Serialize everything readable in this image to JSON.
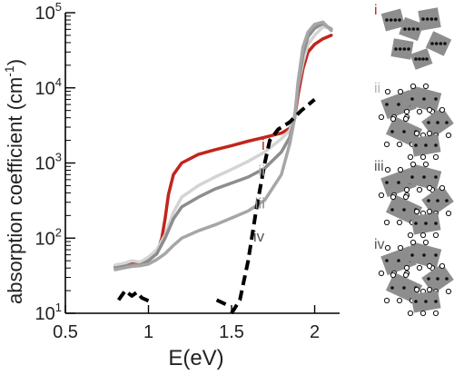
{
  "chart_data": {
    "type": "line",
    "xlabel": "E(eV)",
    "ylabel": "absorption coefficient (cm",
    "ylabel_sup": "-1",
    "ylabel_close": ")",
    "xlim": [
      0.5,
      2.15
    ],
    "ylim": [
      10,
      100000
    ],
    "yscale": "log",
    "grid": false,
    "x_ticks": [
      {
        "value": 0.5,
        "label": "0.5"
      },
      {
        "value": 1.0,
        "label": "1"
      },
      {
        "value": 1.5,
        "label": "1.5"
      },
      {
        "value": 2.0,
        "label": "2"
      }
    ],
    "y_ticks": [
      {
        "value": 10,
        "base": "10",
        "exp": "1"
      },
      {
        "value": 100,
        "base": "10",
        "exp": "2"
      },
      {
        "value": 1000,
        "base": "10",
        "exp": "3"
      },
      {
        "value": 10000,
        "base": "10",
        "exp": "4"
      },
      {
        "value": 100000,
        "base": "10",
        "exp": "5"
      }
    ],
    "series": [
      {
        "name": "i",
        "color": "#c0261c",
        "dash": false,
        "label_at": [
          1.68,
          1500
        ],
        "points": [
          [
            0.8,
            42
          ],
          [
            0.85,
            43
          ],
          [
            0.9,
            46
          ],
          [
            0.95,
            45
          ],
          [
            1.0,
            52
          ],
          [
            1.05,
            62
          ],
          [
            1.08,
            100
          ],
          [
            1.1,
            180
          ],
          [
            1.12,
            380
          ],
          [
            1.15,
            700
          ],
          [
            1.2,
            1000
          ],
          [
            1.3,
            1300
          ],
          [
            1.4,
            1500
          ],
          [
            1.5,
            1700
          ],
          [
            1.6,
            1950
          ],
          [
            1.7,
            2200
          ],
          [
            1.8,
            2500
          ],
          [
            1.85,
            2900
          ],
          [
            1.88,
            4000
          ],
          [
            1.9,
            8000
          ],
          [
            1.93,
            18000
          ],
          [
            1.96,
            30000
          ],
          [
            2.0,
            38000
          ],
          [
            2.05,
            45000
          ],
          [
            2.1,
            50000
          ]
        ]
      },
      {
        "name": "ii",
        "color": "#d4d4d4",
        "dash": false,
        "label_at": [
          1.66,
          680
        ],
        "points": [
          [
            0.8,
            44
          ],
          [
            0.85,
            46
          ],
          [
            0.9,
            50
          ],
          [
            0.95,
            48
          ],
          [
            1.0,
            56
          ],
          [
            1.05,
            70
          ],
          [
            1.1,
            110
          ],
          [
            1.15,
            220
          ],
          [
            1.2,
            350
          ],
          [
            1.3,
            500
          ],
          [
            1.4,
            650
          ],
          [
            1.5,
            820
          ],
          [
            1.6,
            1050
          ],
          [
            1.7,
            1400
          ],
          [
            1.8,
            2100
          ],
          [
            1.85,
            2700
          ],
          [
            1.88,
            4500
          ],
          [
            1.9,
            10000
          ],
          [
            1.93,
            22000
          ],
          [
            1.96,
            38000
          ],
          [
            2.0,
            50000
          ],
          [
            2.05,
            65000
          ],
          [
            2.1,
            62000
          ]
        ]
      },
      {
        "name": "iii",
        "color": "#8d8d8d",
        "dash": false,
        "label_at": [
          1.64,
          250
        ],
        "points": [
          [
            0.8,
            40
          ],
          [
            0.85,
            42
          ],
          [
            0.9,
            44
          ],
          [
            0.95,
            44
          ],
          [
            1.0,
            50
          ],
          [
            1.05,
            62
          ],
          [
            1.1,
            100
          ],
          [
            1.15,
            180
          ],
          [
            1.2,
            260
          ],
          [
            1.3,
            350
          ],
          [
            1.4,
            450
          ],
          [
            1.5,
            540
          ],
          [
            1.6,
            650
          ],
          [
            1.7,
            850
          ],
          [
            1.8,
            1400
          ],
          [
            1.85,
            2200
          ],
          [
            1.88,
            4000
          ],
          [
            1.9,
            10000
          ],
          [
            1.93,
            28000
          ],
          [
            1.96,
            48000
          ],
          [
            2.0,
            62000
          ],
          [
            2.05,
            72000
          ],
          [
            2.1,
            60000
          ]
        ]
      },
      {
        "name": "iv",
        "color": "#a6a6a6",
        "dash": false,
        "label_at": [
          1.63,
          90
        ],
        "points": [
          [
            0.8,
            38
          ],
          [
            0.85,
            40
          ],
          [
            0.9,
            42
          ],
          [
            0.95,
            43
          ],
          [
            1.0,
            45
          ],
          [
            1.05,
            52
          ],
          [
            1.1,
            62
          ],
          [
            1.15,
            80
          ],
          [
            1.2,
            100
          ],
          [
            1.3,
            125
          ],
          [
            1.4,
            150
          ],
          [
            1.5,
            185
          ],
          [
            1.6,
            230
          ],
          [
            1.7,
            320
          ],
          [
            1.8,
            700
          ],
          [
            1.85,
            1800
          ],
          [
            1.88,
            4000
          ],
          [
            1.9,
            12000
          ],
          [
            1.93,
            35000
          ],
          [
            1.96,
            55000
          ],
          [
            2.0,
            70000
          ],
          [
            2.05,
            75000
          ],
          [
            2.1,
            58000
          ]
        ]
      },
      {
        "name": "",
        "color": "#000000",
        "dash": true,
        "points": [
          [
            1.5,
            10
          ],
          [
            1.55,
            15
          ],
          [
            1.6,
            50
          ],
          [
            1.65,
            250
          ],
          [
            1.7,
            1000
          ],
          [
            1.73,
            2000
          ],
          [
            1.78,
            2800
          ],
          [
            1.85,
            3500
          ],
          [
            1.92,
            5000
          ],
          [
            2.0,
            7000
          ]
        ]
      },
      {
        "name": "",
        "color": "#000000",
        "dash": true,
        "points": [
          [
            0.82,
            15
          ],
          [
            0.86,
            20
          ],
          [
            0.9,
            17
          ],
          [
            0.93,
            19
          ],
          [
            0.96,
            16
          ],
          [
            1.02,
            14
          ]
        ]
      },
      {
        "name": "",
        "color": "#000000",
        "dash": true,
        "points": [
          [
            1.41,
            15
          ],
          [
            1.44,
            14
          ],
          [
            1.47,
            13
          ]
        ]
      }
    ],
    "insets": [
      {
        "label": "i",
        "color": "#c0261c"
      },
      {
        "label": "ii",
        "color": "#b4b4b4"
      },
      {
        "label": "iii",
        "color": "#555555"
      },
      {
        "label": "iv",
        "color": "#555555"
      }
    ]
  }
}
